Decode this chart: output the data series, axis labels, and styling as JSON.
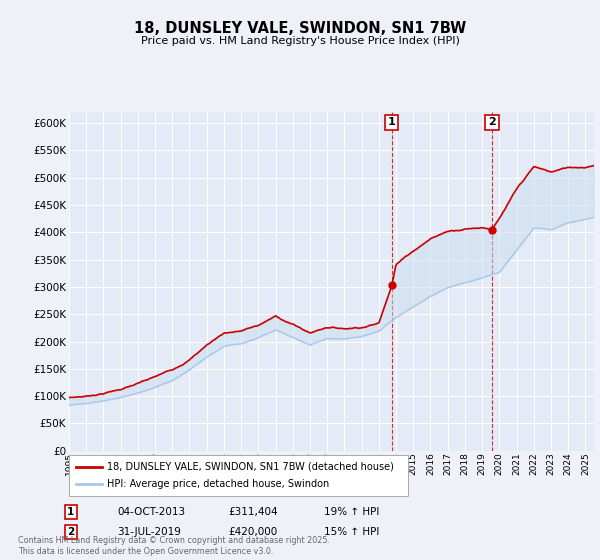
{
  "title": "18, DUNSLEY VALE, SWINDON, SN1 7BW",
  "subtitle": "Price paid vs. HM Land Registry's House Price Index (HPI)",
  "legend_line1": "18, DUNSLEY VALE, SWINDON, SN1 7BW (detached house)",
  "legend_line2": "HPI: Average price, detached house, Swindon",
  "footer": "Contains HM Land Registry data © Crown copyright and database right 2025.\nThis data is licensed under the Open Government Licence v3.0.",
  "annotation1_date": "04-OCT-2013",
  "annotation1_price": "£311,404",
  "annotation1_hpi": "19% ↑ HPI",
  "annotation2_date": "31-JUL-2019",
  "annotation2_price": "£420,000",
  "annotation2_hpi": "15% ↑ HPI",
  "ylim": [
    0,
    620000
  ],
  "yticks": [
    0,
    50000,
    100000,
    150000,
    200000,
    250000,
    300000,
    350000,
    400000,
    450000,
    500000,
    550000,
    600000
  ],
  "background_color": "#eef2f8",
  "plot_bg_color": "#e4eaf6",
  "grid_color": "#ffffff",
  "red_color": "#cc0000",
  "blue_color": "#aac8e8",
  "fill_color": "#c8ddf0",
  "anno1_year": 2013.75,
  "anno2_year": 2019.58,
  "xmin": 1995,
  "xmax": 2025
}
